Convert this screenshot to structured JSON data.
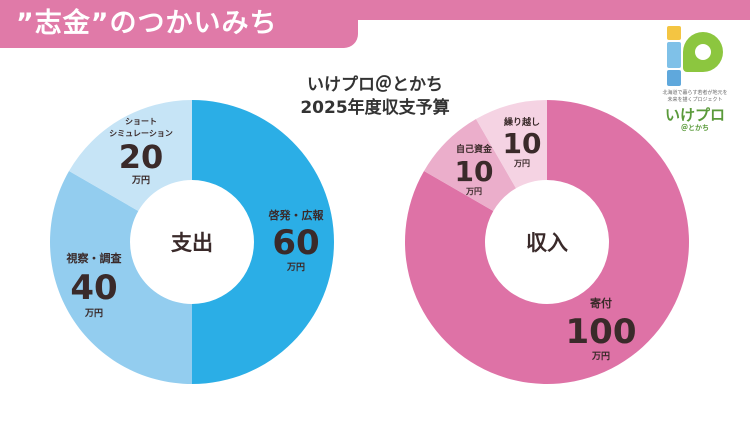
{
  "page": {
    "title": "”志金”のつかいみち",
    "heading_line1": "いけプロ＠とかち",
    "heading_line2": "2025年度収支予算"
  },
  "logo": {
    "tagline_line1": "北海道で暮らす若者が地元を",
    "tagline_line2": "未来を描くプロジェクト",
    "name": "いけプロ",
    "sub": "＠とかち"
  },
  "colors": {
    "pink_bar": "#e07aa8",
    "expense_1": "#2baee6",
    "expense_2": "#93cdef",
    "expense_3": "#c6e4f6",
    "income_1": "#de72a6",
    "income_2": "#ebaecb",
    "income_3": "#f5d3e3",
    "text": "#3a2a2a"
  },
  "chart_data": [
    {
      "type": "pie",
      "center_label": "支出",
      "unit": "万円",
      "slices": [
        {
          "label": "啓発・広報",
          "value": 60
        },
        {
          "label": "視察・調査",
          "value": 40
        },
        {
          "label_line1": "ショート",
          "label_line2": "シミュレーション",
          "value": 20
        }
      ]
    },
    {
      "type": "pie",
      "center_label": "収入",
      "unit": "万円",
      "slices": [
        {
          "label": "寄付",
          "value": 100
        },
        {
          "label": "自己資金",
          "value": 10
        },
        {
          "label": "繰り越し",
          "value": 10
        }
      ]
    }
  ]
}
